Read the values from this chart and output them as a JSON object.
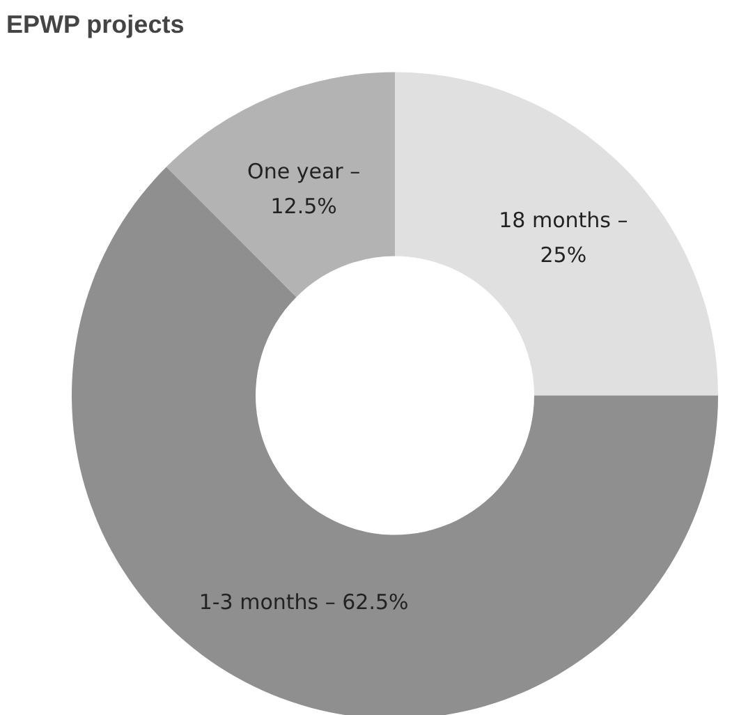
{
  "chart_data": {
    "type": "donut",
    "title": "EPWP projects",
    "categories": [
      "18 months –\n25%",
      "1-3 months – 62.5%",
      "One year –\n12.5%"
    ],
    "values": [
      25,
      62.5,
      12.5
    ],
    "colors": [
      "#e0e0e0",
      "#8f8f8f",
      "#b3b3b3"
    ]
  }
}
